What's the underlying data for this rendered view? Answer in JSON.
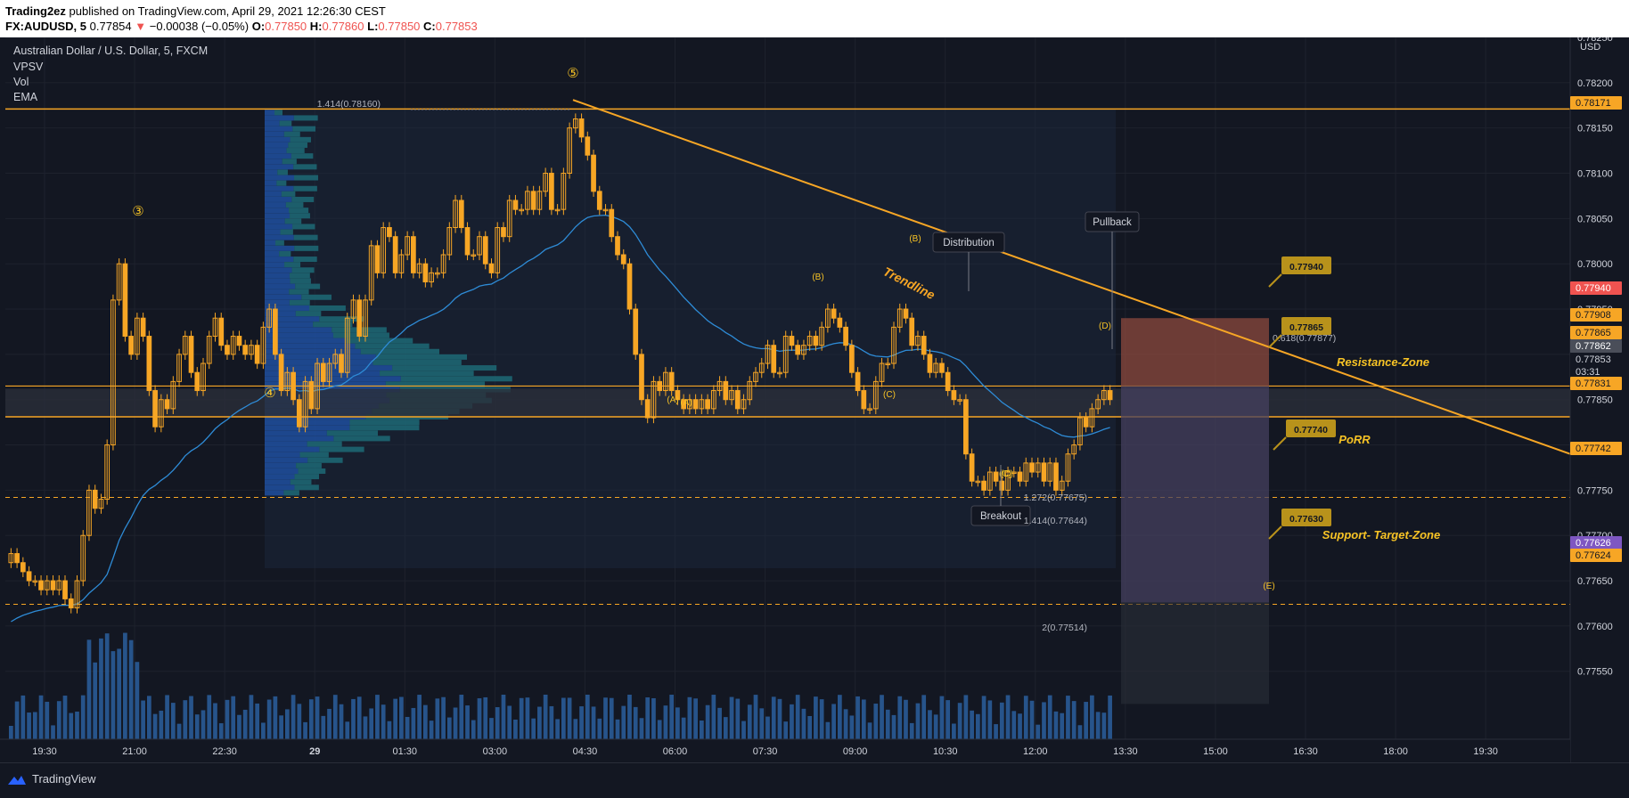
{
  "header": {
    "author": "Trading2ez",
    "published": "published on TradingView.com, April 29, 2021 12:26:30 CEST",
    "symbol": "FX:AUDUSD, 5",
    "last": "0.77854",
    "change": "−0.00038 (−0.05%)",
    "o_label": "O:",
    "o": "0.77850",
    "h_label": "H:",
    "h": "0.77860",
    "l_label": "L:",
    "l": "0.77850",
    "c_label": "C:",
    "c": "0.77853"
  },
  "legend": {
    "title": "Australian Dollar / U.S. Dollar, 5, FXCM",
    "items": [
      "VPSV",
      "Vol",
      "EMA"
    ]
  },
  "footer": {
    "brand": "TradingView"
  },
  "colors": {
    "background": "#131722",
    "grid": "#1e222d",
    "candle": "#f7a625",
    "annotation": "#f7c325",
    "ema": "#2e8bd6",
    "volume": "#2c5f9e",
    "risk": "#8c4a3d",
    "reward": "#45405f",
    "label_green": "#c9a227",
    "red_label": "#ef5350",
    "purple_label": "#7e57c2"
  },
  "chart_data": {
    "type": "candlestick",
    "currency": "USD",
    "ylim": [
      0.77475,
      0.7825
    ],
    "y_ticks": [
      "0.78250",
      "0.78200",
      "0.78150",
      "0.78100",
      "0.78050",
      "0.78000",
      "0.77950",
      "0.77900",
      "0.77850",
      "0.77800",
      "0.77750",
      "0.77700",
      "0.77650",
      "0.77600",
      "0.77550"
    ],
    "x_ticks": [
      "19:30",
      "21:00",
      "22:30",
      "29",
      "01:30",
      "03:00",
      "04:30",
      "06:00",
      "07:30",
      "09:00",
      "10:30",
      "12:00",
      "13:30",
      "15:00",
      "16:30",
      "18:00",
      "19:30"
    ],
    "candles_close": [
      0.7768,
      0.7767,
      0.7766,
      0.7765,
      0.7765,
      0.7764,
      0.7765,
      0.7764,
      0.7765,
      0.7763,
      0.7762,
      0.7765,
      0.777,
      0.7775,
      0.7773,
      0.7774,
      0.778,
      0.7796,
      0.78,
      0.7792,
      0.779,
      0.7794,
      0.7792,
      0.7786,
      0.7782,
      0.7785,
      0.7784,
      0.7787,
      0.779,
      0.7792,
      0.7788,
      0.7786,
      0.7789,
      0.7792,
      0.7794,
      0.7791,
      0.779,
      0.7792,
      0.7791,
      0.779,
      0.7791,
      0.7789,
      0.7793,
      0.7795,
      0.779,
      0.7786,
      0.7788,
      0.7785,
      0.7782,
      0.7787,
      0.7784,
      0.7789,
      0.7787,
      0.7789,
      0.779,
      0.7788,
      0.7794,
      0.7796,
      0.7792,
      0.7796,
      0.7802,
      0.7799,
      0.7804,
      0.7803,
      0.7799,
      0.7801,
      0.7803,
      0.7799,
      0.78,
      0.7798,
      0.7799,
      0.7799,
      0.7801,
      0.7804,
      0.7807,
      0.7804,
      0.7801,
      0.7801,
      0.7803,
      0.78,
      0.7799,
      0.7804,
      0.7803,
      0.7807,
      0.7806,
      0.7806,
      0.7808,
      0.7806,
      0.7808,
      0.781,
      0.7806,
      0.7806,
      0.781,
      0.7815,
      0.7816,
      0.7814,
      0.7812,
      0.7808,
      0.7806,
      0.7806,
      0.7803,
      0.7801,
      0.78,
      0.7795,
      0.779,
      0.7785,
      0.7783,
      0.7787,
      0.7786,
      0.7788,
      0.7786,
      0.7785,
      0.7784,
      0.7785,
      0.7784,
      0.7785,
      0.7784,
      0.7786,
      0.7787,
      0.7785,
      0.7786,
      0.7784,
      0.7785,
      0.7787,
      0.7788,
      0.7789,
      0.7791,
      0.7788,
      0.7788,
      0.7792,
      0.7791,
      0.779,
      0.7791,
      0.7792,
      0.7791,
      0.7793,
      0.7795,
      0.7794,
      0.7793,
      0.7791,
      0.7788,
      0.7786,
      0.7784,
      0.7784,
      0.7787,
      0.7789,
      0.7789,
      0.7793,
      0.7795,
      0.7794,
      0.7791,
      0.7792,
      0.779,
      0.7788,
      0.7789,
      0.7788,
      0.7786,
      0.7785,
      0.7785,
      0.7779,
      0.7776,
      0.7776,
      0.7775,
      0.7777,
      0.7776,
      0.7775,
      0.7777,
      0.7777,
      0.7776,
      0.7778,
      0.7777,
      0.7778,
      0.7776,
      0.7778,
      0.7775,
      0.7776,
      0.7779,
      0.778,
      0.7783,
      0.7782,
      0.7784,
      0.7785,
      0.7786,
      0.7785
    ]
  },
  "volume_profile": {
    "note": ""
  },
  "annotations": {
    "wave_labels": [
      "③",
      "④",
      "⑤"
    ],
    "abc_labels": [
      "(A)",
      "(A)",
      "(B)",
      "(B)",
      "(C)",
      "(C)",
      "(C)",
      "(D)",
      "(E)"
    ],
    "callouts": [
      "Distribution",
      "Pullback",
      "Breakout"
    ],
    "trendline_label": "Trendline",
    "zone_labels": [
      "Resistance-Zone",
      "PoRR",
      "Support- Target-Zone"
    ],
    "fib_labels": [
      "1.414(0.78160)",
      "1.272(0.77675)",
      "1.414(0.77644)",
      "2(0.77514)",
      "0.618(0.77877)"
    ],
    "target_flags": [
      "0.77940",
      "0.77865",
      "0.77740",
      "0.77630"
    ]
  },
  "price_labels": [
    {
      "text": "0.78171",
      "style": "yellow"
    },
    {
      "text": "0.77940",
      "style": "red"
    },
    {
      "text": "0.77908",
      "style": "yellow"
    },
    {
      "text": "0.77865",
      "style": "yellow"
    },
    {
      "text": "0.77862",
      "style": "gray"
    },
    {
      "text": "0.77853",
      "style": "white"
    },
    {
      "text": "03:31",
      "style": "white"
    },
    {
      "text": "0.77831",
      "style": "yellow"
    },
    {
      "text": "0.77742",
      "style": "yellow"
    },
    {
      "text": "0.77626",
      "style": "purple"
    },
    {
      "text": "0.77624",
      "style": "yellow"
    }
  ]
}
